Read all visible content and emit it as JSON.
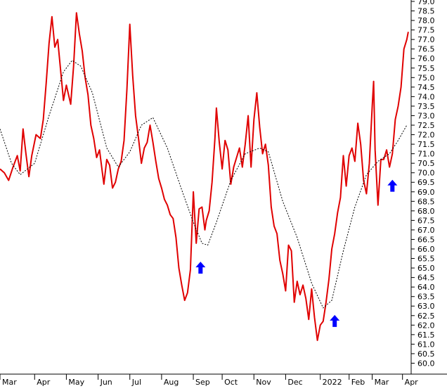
{
  "chart_data": {
    "type": "line",
    "title": "",
    "xlabel": "",
    "ylabel": "",
    "ylim": [
      59.5,
      79.0
    ],
    "y_ticks": [
      60.0,
      60.5,
      61.0,
      61.5,
      62.0,
      62.5,
      63.0,
      63.5,
      64.0,
      64.5,
      65.0,
      65.5,
      66.0,
      66.5,
      67.0,
      67.5,
      68.0,
      68.5,
      69.0,
      69.5,
      70.0,
      70.5,
      71.0,
      71.5,
      72.0,
      72.5,
      73.0,
      73.5,
      74.0,
      74.5,
      75.0,
      75.5,
      76.0,
      76.5,
      77.0,
      77.5,
      78.0,
      78.5,
      79.0
    ],
    "y_axis_side": "right",
    "grid": false,
    "x_tick_labels": [
      {
        "label": "Mar",
        "t": 0
      },
      {
        "label": "Apr",
        "t": 24
      },
      {
        "label": "May",
        "t": 46
      },
      {
        "label": "Jun",
        "t": 68
      },
      {
        "label": "Jul",
        "t": 90
      },
      {
        "label": "Aug",
        "t": 112
      },
      {
        "label": "Sep",
        "t": 134
      },
      {
        "label": "Oct",
        "t": 154
      },
      {
        "label": "Nov",
        "t": 176
      },
      {
        "label": "Dec",
        "t": 198
      },
      {
        "label": "2022",
        "t": 222
      },
      {
        "label": "Feb",
        "t": 242
      },
      {
        "label": "Mar",
        "t": 258
      },
      {
        "label": "Apr",
        "t": 279
      }
    ],
    "series": [
      {
        "kind": "price",
        "color": "#e00000",
        "points": [
          [
            0,
            70.2
          ],
          [
            3,
            70.0
          ],
          [
            6,
            69.6
          ],
          [
            9,
            70.3
          ],
          [
            12,
            70.9
          ],
          [
            14,
            70.1
          ],
          [
            16,
            72.3
          ],
          [
            18,
            71.0
          ],
          [
            20,
            69.8
          ],
          [
            22,
            70.9
          ],
          [
            25,
            72.0
          ],
          [
            28,
            71.8
          ],
          [
            30,
            72.8
          ],
          [
            32,
            74.7
          ],
          [
            34,
            76.8
          ],
          [
            36,
            78.2
          ],
          [
            38,
            76.6
          ],
          [
            40,
            77.0
          ],
          [
            42,
            75.4
          ],
          [
            44,
            73.8
          ],
          [
            46,
            74.6
          ],
          [
            49,
            73.6
          ],
          [
            51,
            75.6
          ],
          [
            53,
            78.4
          ],
          [
            55,
            77.3
          ],
          [
            57,
            76.4
          ],
          [
            59,
            75.0
          ],
          [
            61,
            74.1
          ],
          [
            63,
            72.5
          ],
          [
            65,
            71.8
          ],
          [
            67,
            70.8
          ],
          [
            69,
            71.2
          ],
          [
            71,
            70.0
          ],
          [
            72,
            69.4
          ],
          [
            74,
            70.7
          ],
          [
            76,
            70.4
          ],
          [
            78,
            69.2
          ],
          [
            80,
            69.5
          ],
          [
            82,
            70.2
          ],
          [
            84,
            70.6
          ],
          [
            86,
            71.7
          ],
          [
            88,
            74.4
          ],
          [
            90,
            77.8
          ],
          [
            92,
            75.1
          ],
          [
            94,
            73.0
          ],
          [
            96,
            71.8
          ],
          [
            98,
            70.5
          ],
          [
            100,
            71.3
          ],
          [
            102,
            71.6
          ],
          [
            104,
            72.5
          ],
          [
            106,
            71.6
          ],
          [
            108,
            70.6
          ],
          [
            110,
            69.7
          ],
          [
            112,
            69.2
          ],
          [
            114,
            68.6
          ],
          [
            116,
            68.3
          ],
          [
            118,
            67.8
          ],
          [
            120,
            67.6
          ],
          [
            122,
            66.6
          ],
          [
            124,
            65.0
          ],
          [
            126,
            64.1
          ],
          [
            128,
            63.3
          ],
          [
            130,
            63.7
          ],
          [
            132,
            64.9
          ],
          [
            134,
            69.0
          ],
          [
            136,
            66.3
          ],
          [
            138,
            68.1
          ],
          [
            140,
            68.2
          ],
          [
            142,
            67.0
          ],
          [
            143,
            67.5
          ],
          [
            145,
            68.0
          ],
          [
            147,
            69.5
          ],
          [
            149,
            71.8
          ],
          [
            150,
            73.4
          ],
          [
            152,
            71.6
          ],
          [
            154,
            70.2
          ],
          [
            156,
            71.7
          ],
          [
            158,
            71.2
          ],
          [
            160,
            69.4
          ],
          [
            162,
            70.3
          ],
          [
            164,
            70.8
          ],
          [
            166,
            71.3
          ],
          [
            168,
            70.3
          ],
          [
            170,
            71.5
          ],
          [
            172,
            73.0
          ],
          [
            174,
            70.3
          ],
          [
            176,
            72.8
          ],
          [
            178,
            74.2
          ],
          [
            180,
            72.4
          ],
          [
            182,
            71.0
          ],
          [
            184,
            71.5
          ],
          [
            186,
            70.4
          ],
          [
            188,
            68.2
          ],
          [
            190,
            67.2
          ],
          [
            192,
            66.8
          ],
          [
            194,
            65.4
          ],
          [
            196,
            64.7
          ],
          [
            198,
            63.8
          ],
          [
            200,
            66.2
          ],
          [
            202,
            65.9
          ],
          [
            204,
            63.2
          ],
          [
            206,
            64.3
          ],
          [
            208,
            63.6
          ],
          [
            210,
            64.1
          ],
          [
            212,
            63.4
          ],
          [
            214,
            62.3
          ],
          [
            216,
            63.9
          ],
          [
            218,
            62.4
          ],
          [
            220,
            61.2
          ],
          [
            222,
            62.0
          ],
          [
            224,
            62.2
          ],
          [
            226,
            63.2
          ],
          [
            228,
            64.4
          ],
          [
            230,
            66.0
          ],
          [
            232,
            66.8
          ],
          [
            234,
            67.9
          ],
          [
            236,
            68.7
          ],
          [
            238,
            70.9
          ],
          [
            240,
            69.3
          ],
          [
            242,
            70.9
          ],
          [
            244,
            71.3
          ],
          [
            246,
            70.6
          ],
          [
            248,
            72.6
          ],
          [
            250,
            71.5
          ],
          [
            252,
            69.6
          ],
          [
            254,
            68.9
          ],
          [
            256,
            70.5
          ],
          [
            258,
            73.5
          ],
          [
            259,
            74.8
          ],
          [
            260,
            71.2
          ],
          [
            262,
            68.3
          ],
          [
            264,
            70.7
          ],
          [
            266,
            70.7
          ],
          [
            268,
            71.2
          ],
          [
            270,
            70.3
          ],
          [
            272,
            71.0
          ],
          [
            274,
            72.8
          ],
          [
            276,
            73.5
          ],
          [
            278,
            74.5
          ],
          [
            280,
            76.5
          ],
          [
            282,
            77.0
          ],
          [
            283,
            77.4
          ]
        ]
      },
      {
        "kind": "moving-average",
        "color": "#000000",
        "dashed": true,
        "points": [
          [
            0,
            72.3
          ],
          [
            8,
            70.5
          ],
          [
            14,
            69.9
          ],
          [
            24,
            70.5
          ],
          [
            34,
            73.0
          ],
          [
            44,
            75.3
          ],
          [
            50,
            75.9
          ],
          [
            56,
            75.6
          ],
          [
            64,
            74.2
          ],
          [
            74,
            71.3
          ],
          [
            82,
            70.3
          ],
          [
            90,
            71.1
          ],
          [
            98,
            72.5
          ],
          [
            106,
            72.9
          ],
          [
            116,
            71.3
          ],
          [
            126,
            69.1
          ],
          [
            134,
            67.4
          ],
          [
            140,
            66.3
          ],
          [
            144,
            66.2
          ],
          [
            150,
            67.4
          ],
          [
            160,
            69.6
          ],
          [
            170,
            71.0
          ],
          [
            180,
            71.3
          ],
          [
            186,
            71.1
          ],
          [
            196,
            68.5
          ],
          [
            206,
            66.6
          ],
          [
            216,
            64.2
          ],
          [
            224,
            62.9
          ],
          [
            230,
            63.3
          ],
          [
            238,
            65.9
          ],
          [
            246,
            68.2
          ],
          [
            254,
            69.9
          ],
          [
            262,
            70.6
          ],
          [
            270,
            71.0
          ],
          [
            276,
            71.7
          ],
          [
            282,
            72.5
          ]
        ]
      }
    ],
    "annotations": [
      {
        "kind": "up-arrow",
        "color": "#0000ff",
        "t": 139,
        "y": 65.0
      },
      {
        "kind": "up-arrow",
        "color": "#0000ff",
        "t": 232,
        "y": 62.2
      },
      {
        "kind": "up-arrow",
        "color": "#0000ff",
        "t": 272,
        "y": 69.3
      }
    ]
  }
}
